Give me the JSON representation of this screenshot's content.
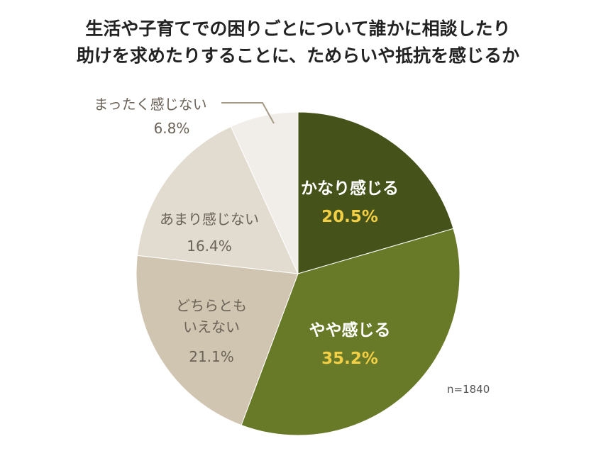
{
  "chart_data": {
    "type": "pie",
    "title": "生活や子育てでの困りごとについて誰かに相談したり\n助けを求めたりすることに、ためらいや抵抗を感じるか",
    "title_lines": [
      "生活や子育てでの困りごとについて誰かに相談したり",
      "助けを求めたりすることに、ためらいや抵抗を感じるか"
    ],
    "start": "12 o'clock, clockwise",
    "slices": [
      {
        "label": "かなり感じる",
        "value": 20.5,
        "display": "20.5%",
        "color": "#45531b"
      },
      {
        "label": "やや感じる",
        "value": 35.2,
        "display": "35.2%",
        "color": "#687a28"
      },
      {
        "label_lines": [
          "どちらとも",
          "いえない"
        ],
        "label": "どちらともいえない",
        "value": 21.1,
        "display": "21.1%",
        "color": "#d0c5b1"
      },
      {
        "label": "あまり感じない",
        "value": 16.4,
        "display": "16.4%",
        "color": "#e2dbcf"
      },
      {
        "label": "まったく感じない",
        "value": 6.8,
        "display": "6.8%",
        "color": "#f1eeea"
      }
    ],
    "note": "n=1840",
    "label_colors": {
      "inside_label": "#ffffff",
      "inside_value": "#f3cf45",
      "outside": "#6b6258",
      "leader_line": "#a49a86"
    }
  }
}
